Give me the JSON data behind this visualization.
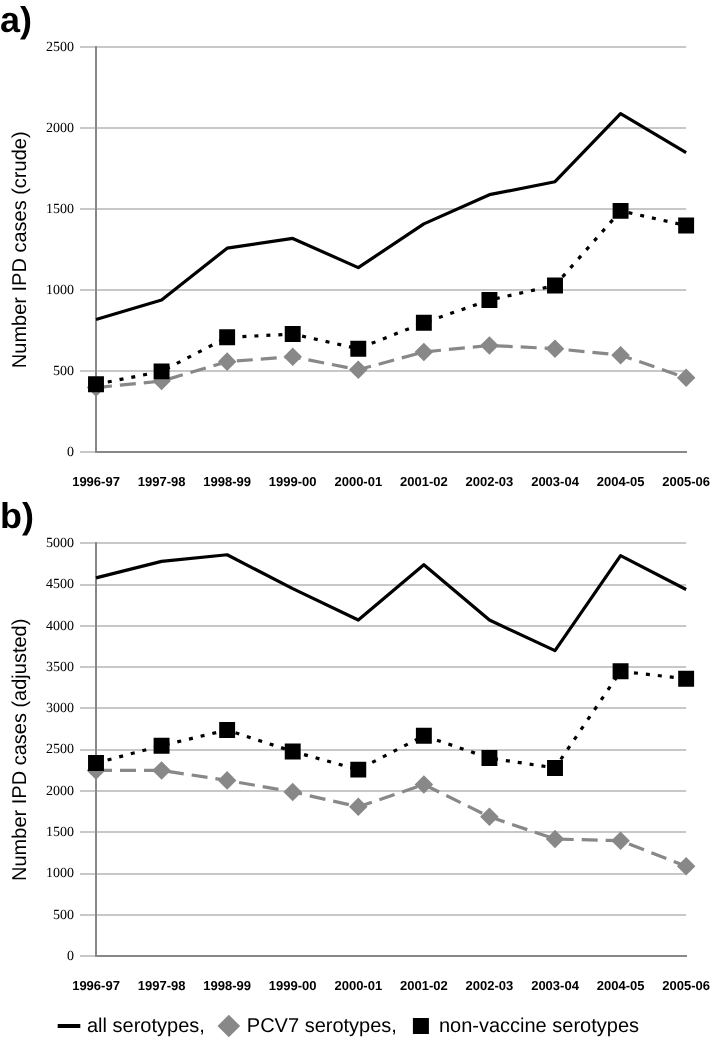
{
  "chart_data": [
    {
      "type": "line",
      "title": "a)",
      "ylabel": "Number IPD cases (crude)",
      "categories": [
        "1996-97",
        "1997-98",
        "1998-99",
        "1999-00",
        "2000-01",
        "2001-02",
        "2002-03",
        "2003-04",
        "2004-05",
        "2005-06"
      ],
      "ylim": [
        0,
        2500
      ],
      "yticks": [
        0,
        500,
        1000,
        1500,
        2000,
        2500
      ],
      "grid": "y",
      "legend": false,
      "series": [
        {
          "color": "#000000",
          "marker": "none",
          "line_style": "solid",
          "values": [
            820,
            940,
            1260,
            1320,
            1140,
            1410,
            1590,
            1670,
            2090,
            1850
          ]
        },
        {
          "color": "#888888",
          "marker": "diamond",
          "line_style": "dashed",
          "values": [
            400,
            440,
            560,
            590,
            510,
            620,
            660,
            640,
            600,
            460
          ]
        },
        {
          "color": "#000000",
          "marker": "square",
          "line_style": "dotted",
          "values": [
            420,
            500,
            710,
            730,
            640,
            800,
            940,
            1030,
            1490,
            1400
          ]
        }
      ]
    },
    {
      "type": "line",
      "title": "b)",
      "ylabel": "Number IPD cases (adjusted)",
      "categories": [
        "1996-97",
        "1997-98",
        "1998-99",
        "1999-00",
        "2000-01",
        "2001-02",
        "2002-03",
        "2003-04",
        "2004-05",
        "2005-06"
      ],
      "ylim": [
        0,
        5000
      ],
      "yticks": [
        0,
        500,
        1000,
        1500,
        2000,
        2500,
        3000,
        3500,
        4000,
        4500,
        5000
      ],
      "grid": "y",
      "legend": "bottom",
      "series": [
        {
          "name": "all serotypes,",
          "color": "#000000",
          "marker": "none",
          "line_style": "solid",
          "values": [
            4580,
            4780,
            4860,
            4450,
            4070,
            4740,
            4070,
            3700,
            4850,
            4440
          ]
        },
        {
          "name": "PCV7 serotypes,",
          "color": "#888888",
          "marker": "diamond",
          "line_style": "dashed",
          "values": [
            2250,
            2250,
            2130,
            1990,
            1810,
            2080,
            1690,
            1420,
            1400,
            1090
          ]
        },
        {
          "name": "non-vaccine serotypes",
          "color": "#000000",
          "marker": "square",
          "line_style": "dotted",
          "values": [
            2340,
            2550,
            2740,
            2480,
            2260,
            2670,
            2400,
            2280,
            3450,
            3360
          ]
        }
      ]
    }
  ]
}
